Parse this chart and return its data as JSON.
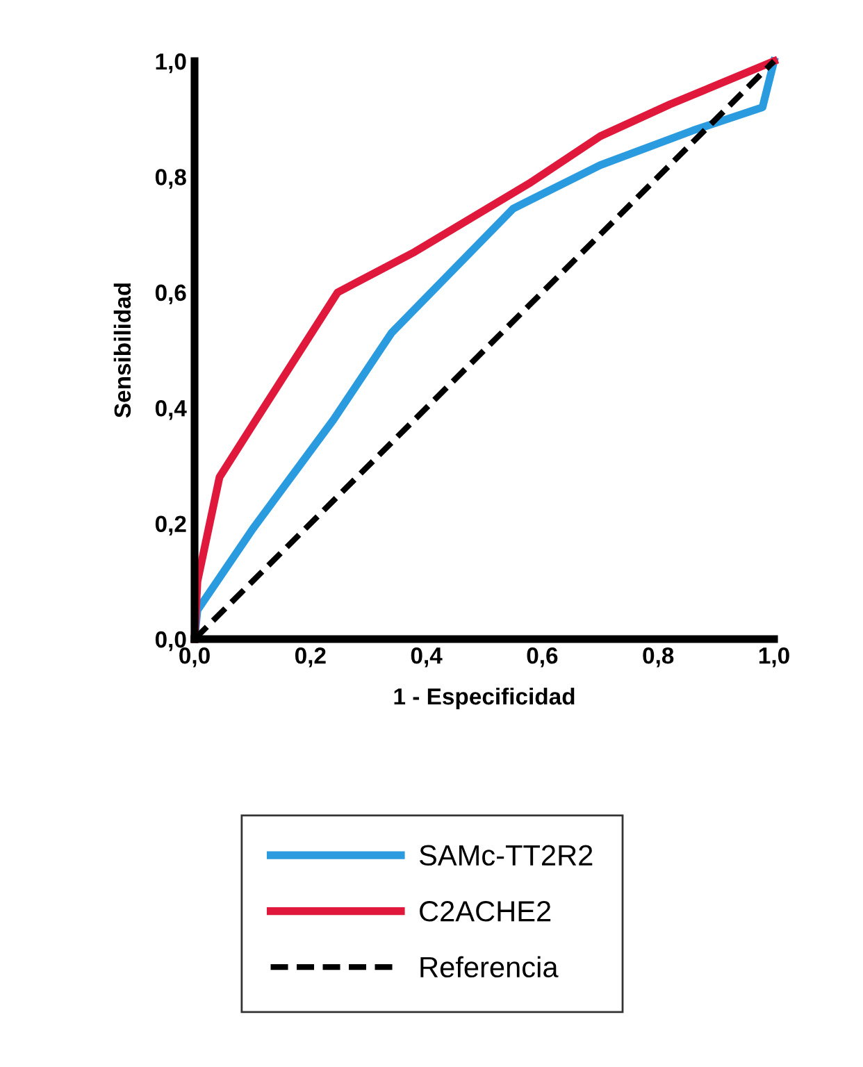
{
  "chart_data": {
    "type": "line",
    "xlabel": "1 - Especificidad",
    "ylabel": "Sensibilidad",
    "xlim": [
      0,
      1
    ],
    "ylim": [
      0,
      1
    ],
    "xticks": [
      {
        "value": 0,
        "label": "0,0"
      },
      {
        "value": 0.2,
        "label": "0,2"
      },
      {
        "value": 0.4,
        "label": "0,4"
      },
      {
        "value": 0.6,
        "label": "0,6"
      },
      {
        "value": 0.8,
        "label": "0,8"
      },
      {
        "value": 1,
        "label": "1,0"
      }
    ],
    "yticks": [
      {
        "value": 0,
        "label": "0,0"
      },
      {
        "value": 0.2,
        "label": "0,2"
      },
      {
        "value": 0.4,
        "label": "0,4"
      },
      {
        "value": 0.6,
        "label": "0,6"
      },
      {
        "value": 0.8,
        "label": "0,8"
      },
      {
        "value": 1,
        "label": "1,0"
      }
    ],
    "grid": false,
    "legend": "bottom",
    "marker": "none",
    "series": [
      {
        "name": "SAMc-TT2R2",
        "color": "#2b9be0",
        "line_style": "solid",
        "x": [
          0,
          0.005,
          0.1,
          0.24,
          0.34,
          0.55,
          0.7,
          0.86,
          0.98,
          1.0
        ],
        "values": [
          0,
          0.05,
          0.19,
          0.38,
          0.53,
          0.745,
          0.82,
          0.88,
          0.92,
          1.0
        ]
      },
      {
        "name": "C2ACHE2",
        "color": "#e0193c",
        "line_style": "solid",
        "x": [
          0,
          0.005,
          0.043,
          0.1,
          0.247,
          0.38,
          0.58,
          0.7,
          0.82,
          1.0
        ],
        "values": [
          0,
          0.1,
          0.28,
          0.37,
          0.6,
          0.67,
          0.79,
          0.87,
          0.925,
          1.0
        ]
      },
      {
        "name": "Referencia",
        "color": "#000000",
        "line_style": "dashed",
        "x": [
          0,
          1
        ],
        "values": [
          0,
          1
        ]
      }
    ]
  }
}
